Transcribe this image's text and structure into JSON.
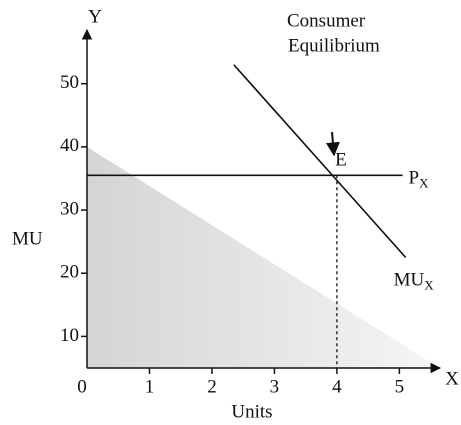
{
  "chart_data": {
    "type": "line",
    "x_axis_label": "X",
    "y_axis_label": "Y",
    "x_title": "Units",
    "y_title": "MU",
    "origin_label": "0",
    "xlim": [
      0,
      5.65
    ],
    "ylim": [
      5,
      58.5
    ],
    "xticks": [
      1,
      2,
      3,
      4,
      5
    ],
    "yticks": [
      10,
      20,
      30,
      40,
      50
    ],
    "series": [
      {
        "name": "MU",
        "name_subscript": "X",
        "color": "#111111",
        "x": [
          2.35,
          5.1
        ],
        "values": [
          53,
          22.5
        ]
      },
      {
        "name": "P",
        "name_subscript": "X",
        "color": "#111111",
        "x": [
          0,
          5.05
        ],
        "values": [
          35.5,
          35.5
        ]
      }
    ],
    "equilibrium": {
      "label": "E",
      "x": 4,
      "y": 35.5,
      "annotation": [
        "Consumer",
        "Equilibrium"
      ]
    }
  }
}
